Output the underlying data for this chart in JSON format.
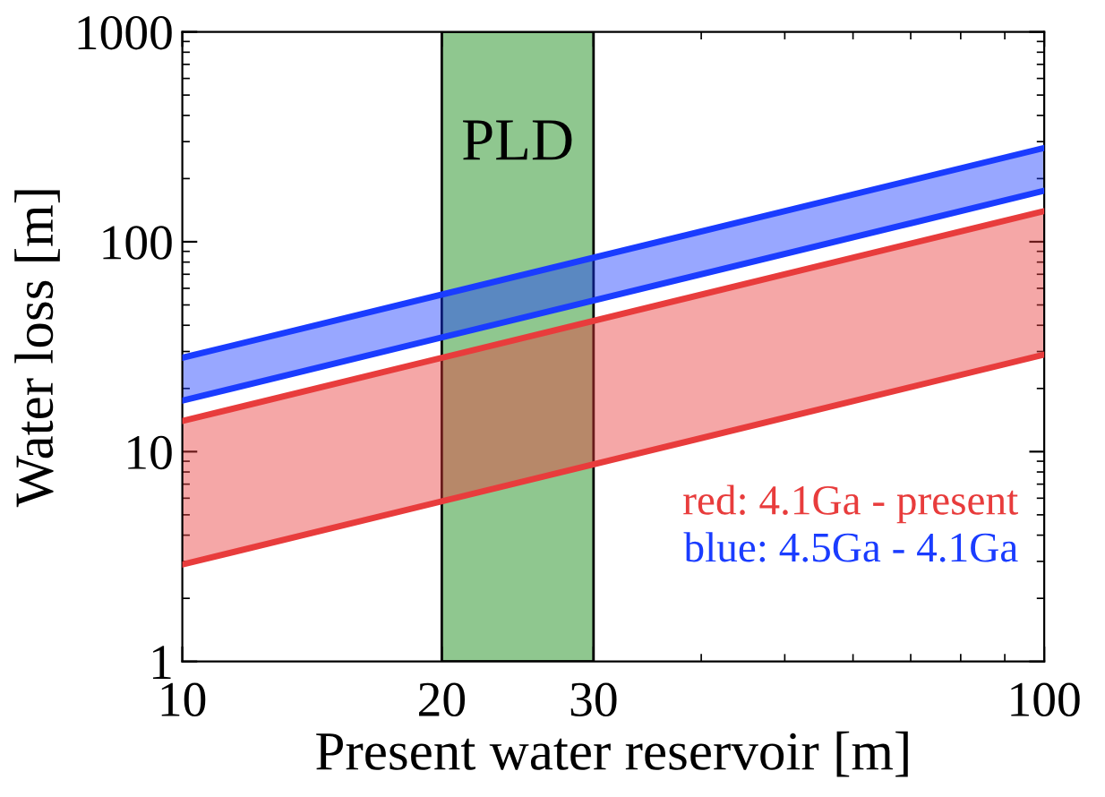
{
  "chart_data": {
    "type": "line",
    "xlabel": "Present water reservoir [m]",
    "ylabel": "Water loss [m]",
    "x": [
      10,
      100
    ],
    "log": "xy",
    "xlim": [
      10,
      100
    ],
    "ylim": [
      1,
      1000
    ],
    "xticks": [
      10,
      20,
      30,
      100
    ],
    "yticks": [
      1,
      10,
      100,
      1000
    ],
    "grid": false,
    "legend": false,
    "series": [
      {
        "color": "#e83c3c",
        "values": [
          14,
          140
        ],
        "lower": [
          2.9,
          29
        ],
        "upper": [
          14,
          140
        ]
      },
      {
        "color": "#1a3cff",
        "values": [
          28,
          280
        ],
        "lower": [
          17.5,
          175
        ],
        "upper": [
          28,
          280
        ]
      },
      {
        "color": "#e83c3c",
        "values": [
          2.9,
          29
        ]
      },
      {
        "color": "#1a3cff",
        "values": [
          17.5,
          175
        ]
      }
    ],
    "bands": [
      {
        "axis": "x",
        "from": 20,
        "to": 30,
        "label": "PLD",
        "color": "#8fc78f"
      }
    ],
    "annotations": [
      "red: 4.1Ga - present",
      "blue: 4.5Ga - 4.1Ga"
    ]
  }
}
